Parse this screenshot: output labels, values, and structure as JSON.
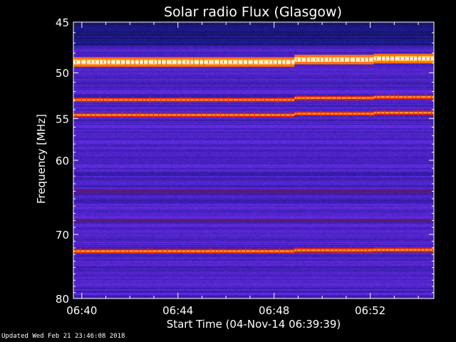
{
  "chart_data": {
    "type": "heatmap",
    "title": "Solar radio Flux (Glasgow)",
    "xlabel": "Start Time (04-Nov-14 06:39:39)",
    "ylabel": "Frequency [MHz]",
    "x_unit": "minutes past 06:39:39",
    "xlim": [
      0,
      15.0
    ],
    "ylim": [
      45,
      80
    ],
    "y_axis_inverted": true,
    "y_scale": "log",
    "x_ticks": [
      {
        "value": 0.35,
        "label": "06:40"
      },
      {
        "value": 4.35,
        "label": "06:44"
      },
      {
        "value": 8.35,
        "label": "06:48"
      },
      {
        "value": 12.35,
        "label": "06:52"
      }
    ],
    "y_ticks": [
      {
        "value": 45,
        "label": "45"
      },
      {
        "value": 50,
        "label": "50"
      },
      {
        "value": 55,
        "label": "55"
      },
      {
        "value": 60,
        "label": "60"
      },
      {
        "value": 70,
        "label": "70"
      },
      {
        "value": 80,
        "label": "80"
      }
    ],
    "segments": [
      {
        "t_start": 0.0,
        "t_end": 9.2
      },
      {
        "t_start": 9.2,
        "t_end": 12.5
      },
      {
        "t_start": 12.5,
        "t_end": 15.0
      }
    ],
    "bands": [
      {
        "freq": 48.9,
        "intensity": 1.0,
        "width_mhz": 0.35,
        "offsets": [
          0,
          -0.25,
          -0.35
        ]
      },
      {
        "freq": 52.9,
        "intensity": 0.8,
        "width_mhz": 0.3,
        "offsets": [
          0,
          -0.2,
          -0.3
        ]
      },
      {
        "freq": 54.6,
        "intensity": 0.75,
        "width_mhz": 0.3,
        "offsets": [
          0,
          -0.15,
          -0.25
        ]
      },
      {
        "freq": 64.0,
        "intensity": 0.35,
        "width_mhz": 0.4,
        "offsets": [
          0,
          0,
          0
        ]
      },
      {
        "freq": 68.0,
        "intensity": 0.3,
        "width_mhz": 0.4,
        "offsets": [
          0,
          0,
          0
        ]
      },
      {
        "freq": 72.5,
        "intensity": 0.6,
        "width_mhz": 0.45,
        "offsets": [
          0,
          -0.15,
          -0.2
        ]
      }
    ],
    "background": "blue-purple noise",
    "colormap": [
      "#000020",
      "#1a10a0",
      "#3a1fd0",
      "#6020c0",
      "#c01818",
      "#ff6010",
      "#ffd040",
      "#ffffff"
    ]
  },
  "footer": {
    "updated": "Updated Wed Feb 21 23:46:08 2018"
  }
}
